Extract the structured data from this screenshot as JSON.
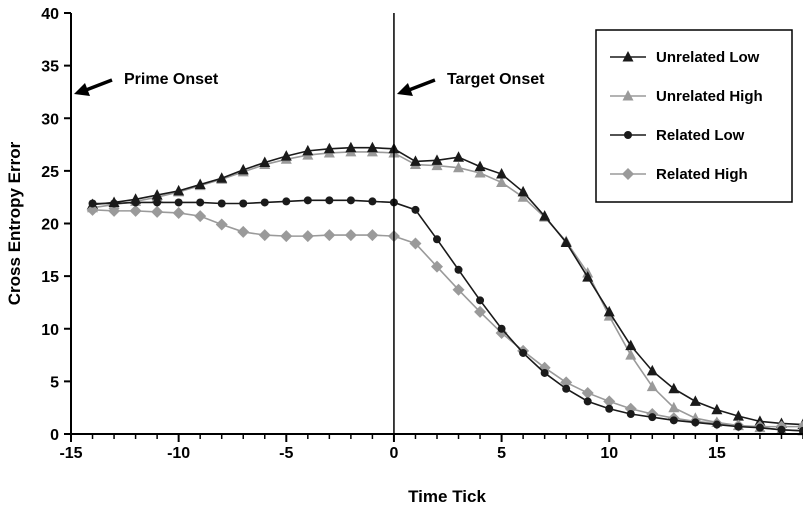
{
  "chart_data": {
    "type": "line",
    "xlabel": "Time Tick",
    "ylabel": "Cross Entropy Error",
    "xlim": [
      -15,
      19
    ],
    "ylim": [
      0,
      40
    ],
    "xticks": [
      -15,
      -10,
      -5,
      0,
      5,
      10,
      15
    ],
    "yticks": [
      0,
      5,
      10,
      15,
      20,
      25,
      30,
      35,
      40
    ],
    "grid": false,
    "legend_position": "top-right",
    "x": [
      -14,
      -13,
      -12,
      -11,
      -10,
      -9,
      -8,
      -7,
      -6,
      -5,
      -4,
      -3,
      -2,
      -1,
      0,
      1,
      2,
      3,
      4,
      5,
      6,
      7,
      8,
      9,
      10,
      11,
      12,
      13,
      14,
      15,
      16,
      17,
      18,
      19
    ],
    "series": [
      {
        "name": "Unrelated Low",
        "color": "#1a1a1a",
        "marker": "triangle",
        "values": [
          21.8,
          22.0,
          22.3,
          22.7,
          23.1,
          23.7,
          24.3,
          25.1,
          25.8,
          26.4,
          26.9,
          27.1,
          27.2,
          27.2,
          27.1,
          25.9,
          26.0,
          26.3,
          25.4,
          24.7,
          23.0,
          20.7,
          18.2,
          14.9,
          11.6,
          8.4,
          6.0,
          4.3,
          3.1,
          2.3,
          1.7,
          1.2,
          1.0,
          0.9
        ]
      },
      {
        "name": "Unrelated High",
        "color": "#9a9a9a",
        "marker": "triangle",
        "values": [
          21.5,
          21.8,
          22.1,
          22.5,
          23.0,
          23.6,
          24.2,
          24.9,
          25.6,
          26.1,
          26.5,
          26.7,
          26.8,
          26.8,
          26.7,
          25.6,
          25.5,
          25.3,
          24.8,
          23.9,
          22.5,
          20.6,
          18.3,
          15.3,
          11.2,
          7.5,
          4.5,
          2.5,
          1.5,
          1.1,
          0.8,
          0.6,
          0.4,
          0.3
        ]
      },
      {
        "name": "Related Low",
        "color": "#1a1a1a",
        "marker": "circle",
        "values": [
          21.9,
          21.9,
          22.0,
          22.0,
          22.0,
          22.0,
          21.9,
          21.9,
          22.0,
          22.1,
          22.2,
          22.2,
          22.2,
          22.1,
          22.0,
          21.3,
          18.5,
          15.6,
          12.7,
          10.0,
          7.7,
          5.8,
          4.3,
          3.1,
          2.4,
          1.9,
          1.6,
          1.3,
          1.1,
          0.9,
          0.7,
          0.6,
          0.4,
          0.3
        ]
      },
      {
        "name": "Related High",
        "color": "#9a9a9a",
        "marker": "diamond",
        "values": [
          21.3,
          21.2,
          21.2,
          21.1,
          21.0,
          20.7,
          19.9,
          19.2,
          18.9,
          18.8,
          18.8,
          18.9,
          18.9,
          18.9,
          18.8,
          18.1,
          15.9,
          13.7,
          11.6,
          9.6,
          7.9,
          6.3,
          4.9,
          3.9,
          3.1,
          2.4,
          1.9,
          1.5,
          1.2,
          1.0,
          0.8,
          0.7,
          0.7,
          0.7
        ]
      }
    ],
    "annotations": [
      {
        "text": "Prime Onset",
        "x": -15,
        "y": 32.3
      },
      {
        "text": "Target Onset",
        "x": 0,
        "y": 32.3
      }
    ]
  }
}
